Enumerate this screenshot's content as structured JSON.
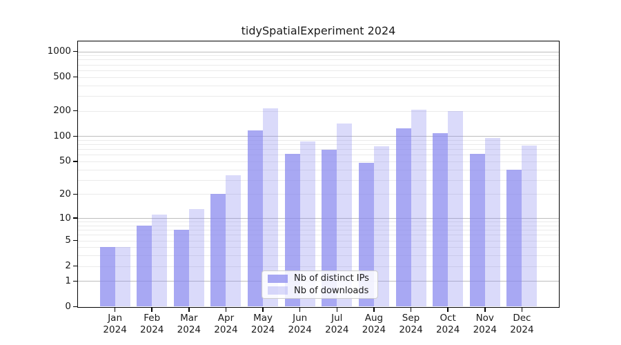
{
  "title": "tidySpatialExperiment 2024",
  "colors": {
    "bar_base": "#8686ee",
    "bar_alpha_ips": 0.72,
    "bar_alpha_downloads": 0.3,
    "grid_major": "#bdbdbd",
    "grid_minor": "#eaeaea",
    "spine": "#000000",
    "text": "#1a1a1a",
    "legend_border": "#cccccc",
    "background": "#ffffff"
  },
  "chart_data": {
    "type": "bar",
    "title": "tidySpatialExperiment 2024",
    "yscale": "log1p",
    "grid": "horizontal; major lines at 1,10,100,1000; minor lines at 2-9 of each decade",
    "legend_position": "lower center",
    "x_year_label": "2024",
    "categories": [
      "Jan",
      "Feb",
      "Mar",
      "Apr",
      "May",
      "Jun",
      "Jul",
      "Aug",
      "Sep",
      "Oct",
      "Nov",
      "Dec"
    ],
    "series": [
      {
        "name": "Nb of distinct IPs",
        "values": [
          4,
          8,
          7,
          20,
          117,
          62,
          69,
          48,
          123,
          109,
          62,
          40
        ]
      },
      {
        "name": "Nb of downloads",
        "values": [
          4,
          11,
          13,
          34,
          213,
          86,
          140,
          76,
          207,
          199,
          96,
          77
        ]
      }
    ],
    "yticks": [
      0,
      1,
      2,
      5,
      10,
      20,
      50,
      100,
      200,
      500,
      1000
    ],
    "ylim": [
      0,
      1300
    ],
    "xlabel": "",
    "ylabel": ""
  }
}
